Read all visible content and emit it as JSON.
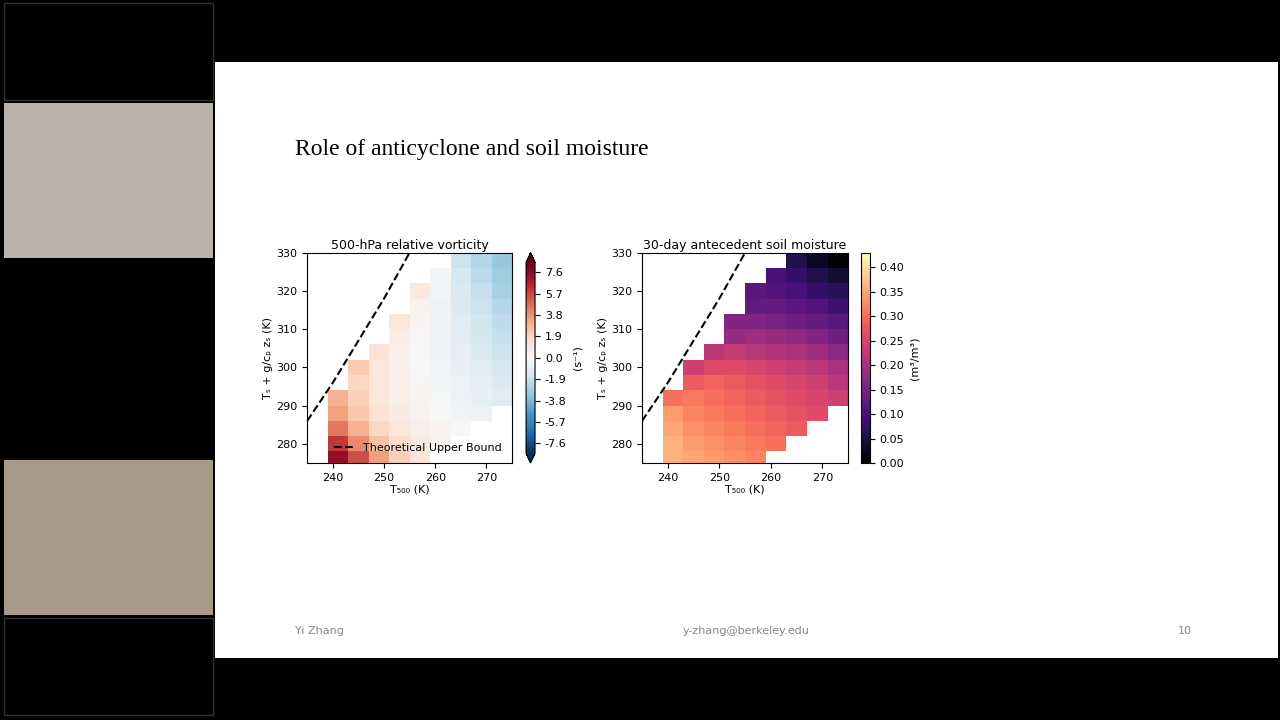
{
  "slide": {
    "title": "Role of anticyclone and soil moisture",
    "footer": {
      "left": "Yi Zhang",
      "center": "y-zhang@berkeley.edu",
      "right": "10"
    }
  },
  "chart_data": [
    {
      "type": "heatmap",
      "title": "500-hPa relative vorticity",
      "x_label": "T₅₀₀ (K)",
      "y_label": "Tₛ + g/cₚ zₛ (K)",
      "xlim": [
        235,
        275
      ],
      "ylim": [
        275,
        330
      ],
      "xticks": [
        240,
        250,
        260,
        270
      ],
      "yticks": [
        280,
        290,
        300,
        310,
        320,
        330
      ],
      "x_edges": [
        235,
        239,
        243,
        247,
        251,
        255,
        259,
        263,
        267,
        271,
        275
      ],
      "y_edges": [
        274,
        278,
        282,
        286,
        290,
        294,
        298,
        302,
        306,
        310,
        314,
        318,
        322,
        326,
        330
      ],
      "cells": [
        [
          null,
          7.5,
          5.5,
          3.5,
          2.0,
          1.0,
          null,
          null,
          null,
          null
        ],
        [
          null,
          6.0,
          4.0,
          2.5,
          1.5,
          0.8,
          0.3,
          null,
          null,
          null
        ],
        [
          null,
          4.5,
          3.0,
          1.8,
          1.0,
          0.5,
          0.2,
          0.0,
          null,
          null
        ],
        [
          null,
          3.5,
          2.3,
          1.3,
          0.7,
          0.3,
          0.0,
          -0.3,
          -0.5,
          null
        ],
        [
          null,
          3.0,
          2.0,
          1.0,
          0.5,
          0.2,
          -0.1,
          -0.4,
          -0.7,
          -1.0
        ],
        [
          null,
          null,
          1.8,
          0.9,
          0.4,
          0.1,
          -0.2,
          -0.5,
          -0.8,
          -1.2
        ],
        [
          null,
          null,
          2.2,
          1.0,
          0.4,
          0.0,
          -0.3,
          -0.7,
          -1.0,
          -1.5
        ],
        [
          null,
          null,
          null,
          1.2,
          0.4,
          0.0,
          -0.4,
          -0.8,
          -1.2,
          -1.8
        ],
        [
          null,
          null,
          null,
          null,
          0.6,
          0.0,
          -0.5,
          -1.0,
          -1.5,
          -2.0
        ],
        [
          null,
          null,
          null,
          null,
          1.0,
          0.2,
          -0.4,
          -1.0,
          -1.6,
          -2.2
        ],
        [
          null,
          null,
          null,
          null,
          null,
          0.3,
          -0.4,
          -1.2,
          -1.8,
          -2.5
        ],
        [
          null,
          null,
          null,
          null,
          null,
          0.8,
          -0.3,
          -1.2,
          -2.0,
          -2.8
        ],
        [
          null,
          null,
          null,
          null,
          null,
          null,
          -0.2,
          -1.5,
          -2.3,
          -3.0
        ],
        [
          null,
          null,
          null,
          null,
          null,
          null,
          null,
          -1.8,
          -2.5,
          -3.2
        ]
      ],
      "colorbar": {
        "label": "(s⁻¹)",
        "lim": [
          -8.5,
          8.5
        ],
        "ticks": [
          -7.6,
          -5.7,
          -3.8,
          -1.9,
          0.0,
          1.9,
          3.8,
          5.7,
          7.6
        ]
      },
      "series": [
        {
          "name": "Theoretical Upper Bound",
          "color": "#000000",
          "line_style": "dashed",
          "x": [
            235,
            240,
            245,
            250,
            255
          ],
          "y": [
            286,
            296,
            307,
            318,
            330
          ]
        }
      ],
      "legend": "lower right"
    },
    {
      "type": "heatmap",
      "title": "30-day antecedent soil moisture",
      "x_label": "T₅₀₀ (K)",
      "y_label": "Tₛ + g/cₚ zₛ (K)",
      "xlim": [
        235,
        275
      ],
      "ylim": [
        275,
        330
      ],
      "xticks": [
        240,
        250,
        260,
        270
      ],
      "yticks": [
        280,
        290,
        300,
        310,
        320,
        330
      ],
      "x_edges": [
        235,
        239,
        243,
        247,
        251,
        255,
        259,
        263,
        267,
        271,
        275
      ],
      "y_edges": [
        274,
        278,
        282,
        286,
        290,
        294,
        298,
        302,
        306,
        310,
        314,
        318,
        322,
        326,
        330
      ],
      "cells": [
        [
          null,
          0.36,
          0.35,
          0.34,
          0.33,
          0.32,
          null,
          null,
          null,
          null
        ],
        [
          null,
          0.36,
          0.34,
          0.33,
          0.32,
          0.31,
          0.3,
          null,
          null,
          null
        ],
        [
          null,
          0.35,
          0.33,
          0.32,
          0.31,
          0.3,
          0.29,
          0.28,
          null,
          null
        ],
        [
          null,
          0.34,
          0.32,
          0.31,
          0.3,
          0.29,
          0.28,
          0.27,
          0.26,
          null
        ],
        [
          null,
          0.3,
          0.31,
          0.3,
          0.29,
          0.28,
          0.27,
          0.26,
          0.25,
          0.24
        ],
        [
          null,
          null,
          0.28,
          0.29,
          0.28,
          0.27,
          0.26,
          0.25,
          0.24,
          0.22
        ],
        [
          null,
          null,
          0.24,
          0.26,
          0.26,
          0.25,
          0.24,
          0.23,
          0.22,
          0.2
        ],
        [
          null,
          null,
          null,
          0.22,
          0.23,
          0.22,
          0.21,
          0.2,
          0.19,
          0.17
        ],
        [
          null,
          null,
          null,
          null,
          0.18,
          0.19,
          0.18,
          0.17,
          0.16,
          0.14
        ],
        [
          null,
          null,
          null,
          null,
          0.16,
          0.16,
          0.15,
          0.14,
          0.13,
          0.12
        ],
        [
          null,
          null,
          null,
          null,
          null,
          0.13,
          0.13,
          0.12,
          0.11,
          0.09
        ],
        [
          null,
          null,
          null,
          null,
          null,
          0.12,
          0.11,
          0.1,
          0.08,
          0.07
        ],
        [
          null,
          null,
          null,
          null,
          null,
          null,
          0.1,
          0.08,
          0.06,
          0.04
        ],
        [
          null,
          null,
          null,
          null,
          null,
          null,
          null,
          0.06,
          0.03,
          0.01
        ]
      ],
      "colorbar": {
        "label": "(m³/m³)",
        "lim": [
          0.0,
          0.43
        ],
        "ticks": [
          {
            "value": 0.0,
            "label": "0.00"
          },
          {
            "value": 0.05,
            "label": "0.05"
          },
          {
            "value": 0.1,
            "label": "0.10"
          },
          {
            "value": 0.15,
            "label": "0.15"
          },
          {
            "value": 0.2,
            "label": "0.20"
          },
          {
            "value": 0.25,
            "label": "0.25"
          },
          {
            "value": 0.3,
            "label": "0.30"
          },
          {
            "value": 0.35,
            "label": "0.35"
          },
          {
            "value": 0.4,
            "label": "0.40"
          }
        ]
      },
      "series": [
        {
          "color": "#000000",
          "line_style": "dashed",
          "x": [
            235,
            240,
            245,
            250,
            255
          ],
          "y": [
            286,
            296,
            307,
            318,
            330
          ]
        }
      ]
    }
  ]
}
